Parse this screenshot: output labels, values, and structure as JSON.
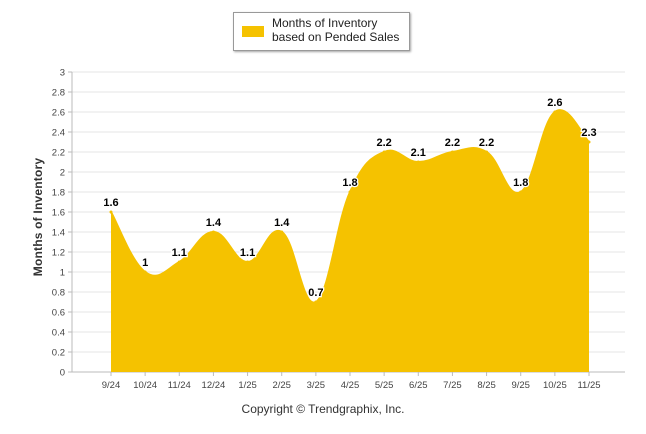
{
  "legend": {
    "label": "Months of Inventory based on Pended Sales",
    "color": "#f5c200"
  },
  "footer": {
    "text": "Copyright © Trendgraphix, Inc."
  },
  "chart_data": {
    "type": "area",
    "title": "",
    "xlabel": "",
    "ylabel": "Months of Inventory",
    "ylim": [
      0,
      3
    ],
    "ytick_step": 0.2,
    "grid": true,
    "legend_position": "top-center",
    "categories": [
      "9/24",
      "10/24",
      "11/24",
      "12/24",
      "1/25",
      "2/25",
      "3/25",
      "4/25",
      "5/25",
      "6/25",
      "7/25",
      "8/25",
      "9/25",
      "10/25",
      "11/25"
    ],
    "series": [
      {
        "name": "Months of Inventory based on Pended Sales",
        "color": "#f5c200",
        "values": [
          1.6,
          1.0,
          1.1,
          1.4,
          1.1,
          1.4,
          0.7,
          1.8,
          2.2,
          2.1,
          2.2,
          2.2,
          1.8,
          2.6,
          2.3
        ]
      }
    ],
    "data_labels": [
      "1.6",
      "1",
      "1.1",
      "1.4",
      "1.1",
      "1.4",
      "0.7",
      "1.8",
      "2.2",
      "2.1",
      "2.2",
      "2.2",
      "1.8",
      "2.6",
      "2.3"
    ]
  }
}
